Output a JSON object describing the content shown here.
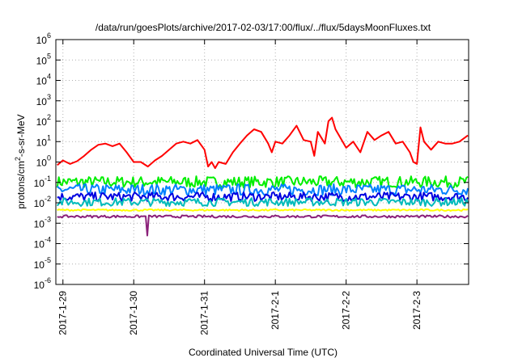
{
  "chart_data": {
    "type": "line",
    "title": "/data/run/goesPlots/archive/2017-02-03/17:00/flux/../flux/5daysMoonFluxes.txt",
    "xlabel": "Coordinated Universal Time (UTC)",
    "ylabel": "protons/cm²-s-sr-MeV",
    "y_scale": "log",
    "ylim": [
      1e-06,
      1000000.0
    ],
    "xlim": [
      -0.1,
      5.73
    ],
    "grid": true,
    "x_ticks": [
      {
        "value": 0,
        "label": "2017-1-29"
      },
      {
        "value": 1,
        "label": "2017-1-30"
      },
      {
        "value": 2,
        "label": "2017-1-31"
      },
      {
        "value": 3,
        "label": "2017-2-1"
      },
      {
        "value": 4,
        "label": "2017-2-2"
      },
      {
        "value": 5,
        "label": "2017-2-3"
      }
    ],
    "y_ticks": [
      {
        "value": 1e-06,
        "base": "10",
        "exp": "-6"
      },
      {
        "value": 1e-05,
        "base": "10",
        "exp": "-5"
      },
      {
        "value": 0.0001,
        "base": "10",
        "exp": "-4"
      },
      {
        "value": 0.001,
        "base": "10",
        "exp": "-3"
      },
      {
        "value": 0.01,
        "base": "10",
        "exp": "-2"
      },
      {
        "value": 0.1,
        "base": "10",
        "exp": "-1"
      },
      {
        "value": 1.0,
        "base": "10",
        "exp": "0"
      },
      {
        "value": 10.0,
        "base": "10",
        "exp": "1"
      },
      {
        "value": 100.0,
        "base": "10",
        "exp": "2"
      },
      {
        "value": 1000.0,
        "base": "10",
        "exp": "3"
      },
      {
        "value": 10000.0,
        "base": "10",
        "exp": "4"
      },
      {
        "value": 100000.0,
        "base": "10",
        "exp": "5"
      },
      {
        "value": 1000000.0,
        "base": "10",
        "exp": "6"
      }
    ],
    "series": [
      {
        "color": "#ff0000",
        "width": 2,
        "points": [
          [
            -0.08,
            0.7
          ],
          [
            0,
            1.2
          ],
          [
            0.1,
            0.8
          ],
          [
            0.2,
            1.1
          ],
          [
            0.3,
            2.0
          ],
          [
            0.4,
            4.0
          ],
          [
            0.5,
            7.0
          ],
          [
            0.6,
            8.0
          ],
          [
            0.7,
            6.0
          ],
          [
            0.8,
            8.0
          ],
          [
            0.9,
            3.0
          ],
          [
            1.0,
            1.0
          ],
          [
            1.1,
            1.0
          ],
          [
            1.2,
            0.6
          ],
          [
            1.3,
            1.2
          ],
          [
            1.4,
            2.0
          ],
          [
            1.5,
            4.0
          ],
          [
            1.6,
            8.0
          ],
          [
            1.7,
            10.0
          ],
          [
            1.8,
            8.0
          ],
          [
            1.9,
            12.0
          ],
          [
            2.0,
            4.0
          ],
          [
            2.05,
            0.6
          ],
          [
            2.1,
            1.0
          ],
          [
            2.15,
            0.5
          ],
          [
            2.2,
            1.0
          ],
          [
            2.3,
            0.8
          ],
          [
            2.4,
            3.0
          ],
          [
            2.5,
            8.0
          ],
          [
            2.6,
            20.0
          ],
          [
            2.7,
            40.0
          ],
          [
            2.8,
            30.0
          ],
          [
            2.9,
            8.0
          ],
          [
            2.95,
            3.0
          ],
          [
            3.0,
            10.0
          ],
          [
            3.1,
            8.0
          ],
          [
            3.2,
            20.0
          ],
          [
            3.3,
            60.0
          ],
          [
            3.4,
            12.0
          ],
          [
            3.5,
            10.0
          ],
          [
            3.55,
            2.0
          ],
          [
            3.6,
            30.0
          ],
          [
            3.7,
            8.0
          ],
          [
            3.75,
            100.0
          ],
          [
            3.8,
            150.0
          ],
          [
            3.85,
            40.0
          ],
          [
            3.9,
            20.0
          ],
          [
            4.0,
            5.0
          ],
          [
            4.1,
            10.0
          ],
          [
            4.2,
            3.0
          ],
          [
            4.3,
            30.0
          ],
          [
            4.4,
            12.0
          ],
          [
            4.5,
            20.0
          ],
          [
            4.6,
            30.0
          ],
          [
            4.7,
            8.0
          ],
          [
            4.8,
            10.0
          ],
          [
            4.9,
            3.0
          ],
          [
            4.95,
            1.0
          ],
          [
            5.0,
            0.8
          ],
          [
            5.05,
            50.0
          ],
          [
            5.1,
            10.0
          ],
          [
            5.2,
            4.0
          ],
          [
            5.3,
            10.0
          ],
          [
            5.4,
            8.0
          ],
          [
            5.5,
            8.0
          ],
          [
            5.6,
            10.0
          ],
          [
            5.72,
            20.0
          ]
        ]
      },
      {
        "color": "#00ee00",
        "width": 2,
        "base": 0.12,
        "amp": 0.28
      },
      {
        "color": "#0080ff",
        "width": 2,
        "base": 0.05,
        "amp": 0.28
      },
      {
        "color": "#0000e0",
        "width": 2,
        "base": 0.022,
        "amp": 0.22
      },
      {
        "color": "#00bbbb",
        "width": 2,
        "base": 0.012,
        "amp": 0.2
      },
      {
        "color": "#ffff00",
        "width": 2,
        "base": 0.0045,
        "amp": 0.04
      },
      {
        "color": "#8b2079",
        "width": 2,
        "base": 0.0022,
        "amp": 0.06,
        "spike": {
          "x": 1.2,
          "value": 0.00025
        }
      }
    ]
  }
}
